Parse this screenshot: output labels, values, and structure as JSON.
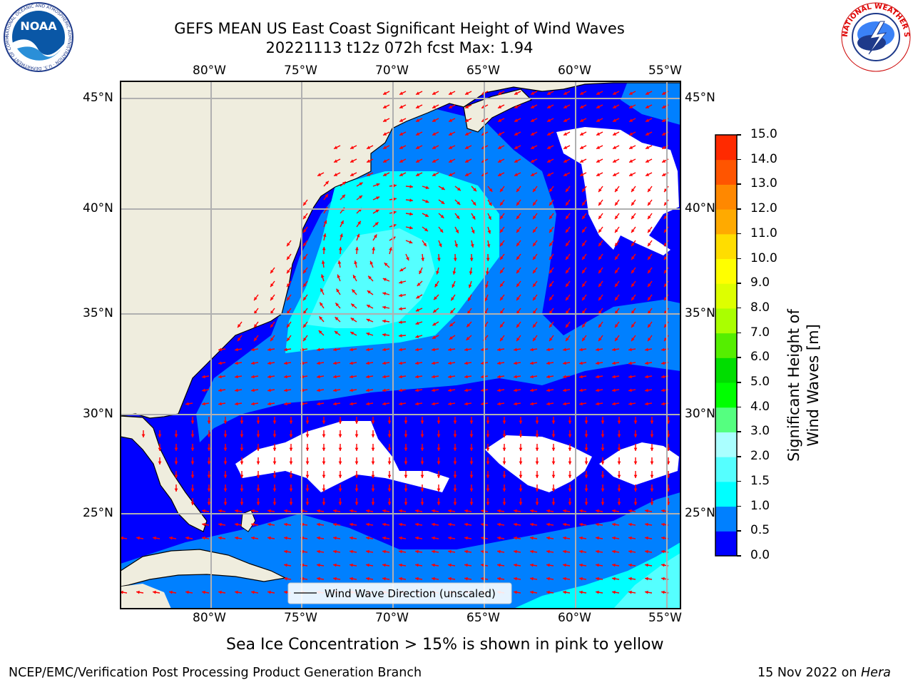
{
  "header": {
    "title_line1": "GEFS MEAN US East Coast Significant Height of Wind Waves",
    "title_line2": "20221113 t12z 072h fcst   Max: 1.94"
  },
  "logos": {
    "left": "NOAA",
    "left_ring_text": "NATIONAL OCEANIC AND ATMOSPHERIC ADMINISTRATION · U.S. DEPARTMENT OF COMMERCE",
    "right_ring_text": "NATIONAL WEATHER SERVICE"
  },
  "map": {
    "lon_labels": [
      "80°W",
      "75°W",
      "70°W",
      "65°W",
      "60°W",
      "55°W"
    ],
    "lat_labels": [
      "45°N",
      "40°N",
      "35°N",
      "30°N",
      "25°N"
    ],
    "legend_label": "Wind Wave Direction (unscaled)",
    "colors": {
      "land": "#efedde",
      "ocean_0": "#0000ff",
      "ocean_05": "#0080ff",
      "ocean_1": "#00ffff",
      "ocean_15": "#55ffff",
      "ocean_2": "#aaffff",
      "arrow": "#ff0000",
      "grid": "#b0b0b0"
    }
  },
  "colorbar": {
    "label": "Significant Height of Wind Waves [m]",
    "ticks": [
      "0.0",
      "0.5",
      "1.0",
      "1.5",
      "2.0",
      "3.0",
      "4.0",
      "5.0",
      "6.0",
      "7.0",
      "8.0",
      "9.0",
      "10.0",
      "11.0",
      "12.0",
      "13.0",
      "14.0",
      "15.0"
    ],
    "colors": [
      "#0000ff",
      "#0080ff",
      "#00ffff",
      "#55ffff",
      "#aaffff",
      "#55ff80",
      "#00ff00",
      "#00dd00",
      "#55ee00",
      "#aaff00",
      "#ddff00",
      "#ffff00",
      "#ffdd00",
      "#ffaa00",
      "#ff8800",
      "#ff5500",
      "#ff2a00"
    ]
  },
  "caption": "Sea Ice Concentration > 15% is shown in pink to yellow",
  "footer": {
    "left": "NCEP/EMC/Verification Post Processing Product Generation Branch",
    "right_prefix": "15 Nov 2022 on ",
    "right_host": "Hera"
  }
}
